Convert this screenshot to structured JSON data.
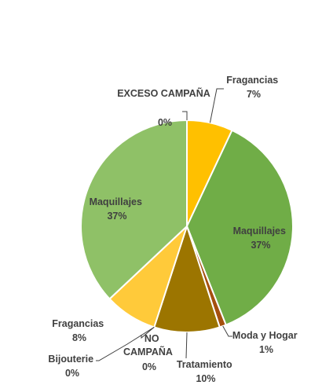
{
  "chart_data": {
    "type": "pie",
    "title": "",
    "slices": [
      {
        "category": "Fragancias",
        "value": 7,
        "label": "7%",
        "color": "#FFC000"
      },
      {
        "category": "Maquillajes",
        "value": 37,
        "label": "37%",
        "color": "#70AD47"
      },
      {
        "category": "Moda y Hogar",
        "value": 1,
        "label": "1%",
        "color": "#A5500F"
      },
      {
        "category": "Tratamiento",
        "value": 10,
        "label": "10%",
        "color": "#9C7500"
      },
      {
        "category": "NO CAMPAÑA",
        "value": 0,
        "label": "0%",
        "color": "#5B9BD5"
      },
      {
        "category": "Bijouterie",
        "value": 0,
        "label": "0%",
        "color": "#ED7D31"
      },
      {
        "category": "Fragancias",
        "value": 8,
        "label": "8%",
        "color": "#FFCA3A"
      },
      {
        "category": "Maquillajes",
        "value": 37,
        "label": "37%",
        "color": "#8FC167"
      },
      {
        "category": "EXCESO CAMPAÑA",
        "value": 0,
        "label": "0%",
        "color": "#A5A5A5"
      }
    ]
  }
}
